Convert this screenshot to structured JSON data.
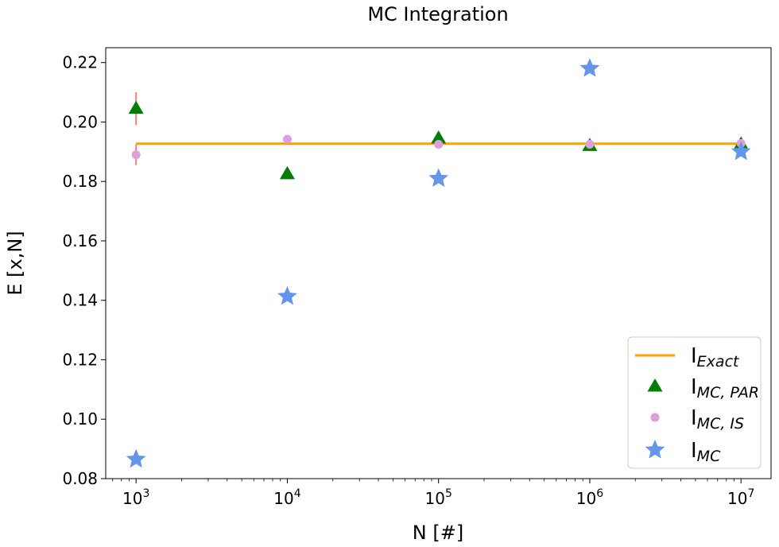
{
  "chart_data": {
    "type": "scatter",
    "title": "MC Integration",
    "xlabel": "N [#]",
    "ylabel": "E [x,N]",
    "xscale": "log",
    "xlim": [
      630,
      15800000
    ],
    "ylim": [
      0.08,
      0.225
    ],
    "xticks": [
      {
        "value": 1000,
        "base": "10",
        "exp": "3"
      },
      {
        "value": 10000,
        "base": "10",
        "exp": "4"
      },
      {
        "value": 100000,
        "base": "10",
        "exp": "5"
      },
      {
        "value": 1000000,
        "base": "10",
        "exp": "6"
      },
      {
        "value": 10000000,
        "base": "10",
        "exp": "7"
      }
    ],
    "yticks": [
      {
        "value": 0.08,
        "label": "0.08"
      },
      {
        "value": 0.1,
        "label": "0.10"
      },
      {
        "value": 0.12,
        "label": "0.12"
      },
      {
        "value": 0.14,
        "label": "0.14"
      },
      {
        "value": 0.16,
        "label": "0.16"
      },
      {
        "value": 0.18,
        "label": "0.18"
      },
      {
        "value": 0.2,
        "label": "0.20"
      },
      {
        "value": 0.22,
        "label": "0.22"
      }
    ],
    "grid": false,
    "legend_position": "lower-right",
    "series": [
      {
        "id": "exact",
        "kind": "line",
        "color": "#ff9f00",
        "legend": {
          "base": "I",
          "sub": "Exact"
        },
        "x": [
          1000,
          10000000
        ],
        "y": [
          0.1927,
          0.1927
        ]
      },
      {
        "id": "par",
        "kind": "triangle",
        "color": "#008000",
        "legend": {
          "base": "I",
          "sub": "MC, PAR"
        },
        "x": [
          1000,
          10000,
          100000,
          1000000,
          10000000
        ],
        "y": [
          0.2045,
          0.1825,
          0.1945,
          0.192,
          0.1925
        ]
      },
      {
        "id": "is",
        "kind": "circle",
        "color": "#dda0dd",
        "legend": {
          "base": "I",
          "sub": "MC, IS"
        },
        "errorbar_color": "#f08080",
        "x": [
          1000,
          10000,
          100000,
          1000000,
          10000000
        ],
        "y": [
          0.189,
          0.1942,
          0.1925,
          0.1925,
          0.1928
        ],
        "yerr": [
          0.0035,
          0.0005,
          0.0005,
          0.0003,
          0.0003
        ]
      },
      {
        "id": "mc",
        "kind": "star",
        "color": "#6495ed",
        "legend": {
          "base": "I",
          "sub": "MC"
        },
        "errorbar_color": "#f08080",
        "x": [
          1000,
          10000,
          100000,
          1000000,
          10000000
        ],
        "y": [
          0.0865,
          0.1413,
          0.181,
          0.218,
          0.19
        ],
        "yerr": [
          0.0,
          0.0,
          0.0,
          0.0,
          0.0
        ]
      },
      {
        "id": "par_err",
        "kind": "errorbar",
        "color": "#f08080",
        "x": [
          1000
        ],
        "y": [
          0.2045
        ],
        "yerr": [
          0.0055
        ]
      }
    ]
  }
}
